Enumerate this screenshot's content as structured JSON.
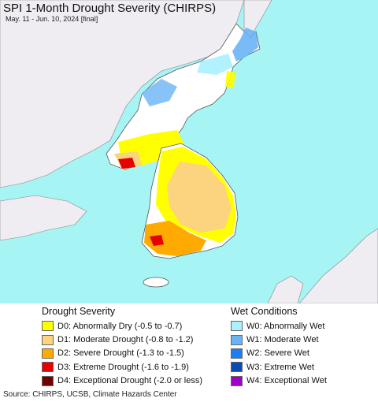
{
  "title": "SPI 1-Month Drought Severity (CHIRPS)",
  "subtitle": "May. 11 - Jun. 10, 2024 [final]",
  "colors": {
    "sea": "#a7f4f4",
    "land": "#ffffff",
    "foreign_land": "#efedf2",
    "border": "#555555"
  },
  "legend_drought": {
    "heading": "Drought Severity",
    "items": [
      {
        "code": "D0",
        "label": "D0: Abnormally Dry (-0.5 to -0.7)",
        "color": "#ffff00"
      },
      {
        "code": "D1",
        "label": "D1: Moderate Drought (-0.8 to -1.2)",
        "color": "#fcd37f"
      },
      {
        "code": "D2",
        "label": "D2: Severe Drought (-1.3 to -1.5)",
        "color": "#ffaa00"
      },
      {
        "code": "D3",
        "label": "D3: Extreme Drought (-1.6 to -1.9)",
        "color": "#e60000"
      },
      {
        "code": "D4",
        "label": "D4: Exceptional Drought (-2.0 or less)",
        "color": "#730000"
      }
    ]
  },
  "legend_wet": {
    "heading": "Wet Conditions",
    "items": [
      {
        "code": "W0",
        "label": "W0: Abnormally Wet",
        "color": "#aaf0ff"
      },
      {
        "code": "W1",
        "label": "W1: Moderate Wet",
        "color": "#6ab4f5"
      },
      {
        "code": "W2",
        "label": "W2: Severe Wet",
        "color": "#1a7ff0"
      },
      {
        "code": "W3",
        "label": "W3: Extreme Wet",
        "color": "#0a4bb4"
      },
      {
        "code": "W4",
        "label": "W4: Exceptional Wet",
        "color": "#a000c8"
      }
    ]
  },
  "source": "Source: CHIRPS, UCSB, Climate Hazards Center"
}
